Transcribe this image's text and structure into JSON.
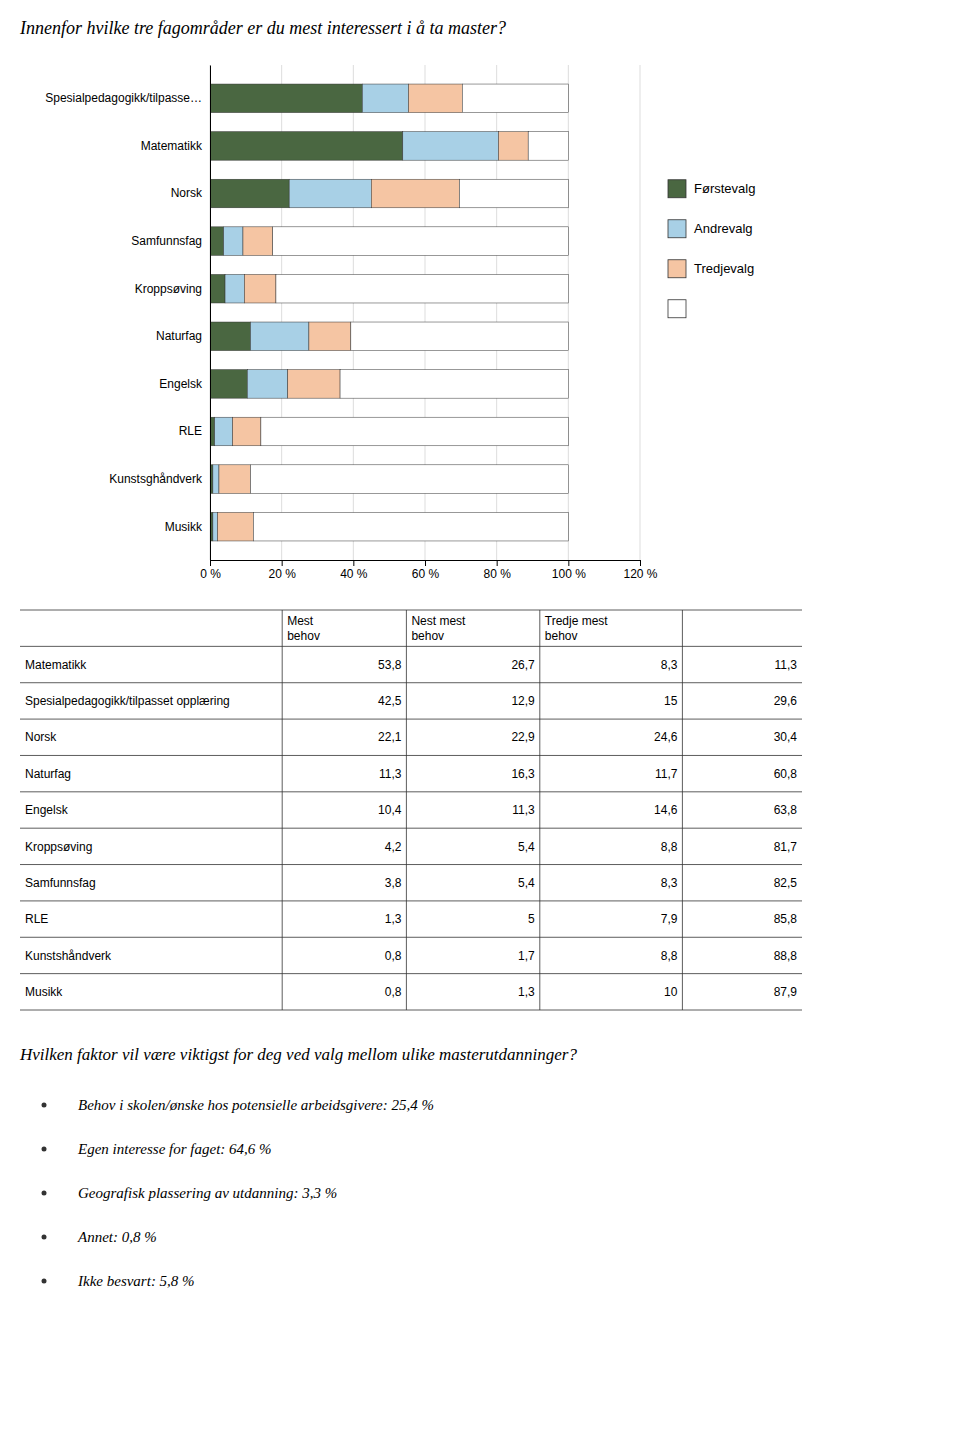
{
  "chart_data": {
    "type": "bar",
    "orientation": "horizontal",
    "stacked": true,
    "title": "Innenfor hvilke tre fagområder er du mest interessert i å ta master?",
    "categories": [
      "Spesialpedagogikk/tilpasse…",
      "Matematikk",
      "Norsk",
      "Samfunnsfag",
      "Kroppsøving",
      "Naturfag",
      "Engelsk",
      "RLE",
      "Kunstsghåndverk",
      "Musikk"
    ],
    "series": [
      {
        "name": "Førstevalg",
        "color": "#4a6741",
        "values": [
          42.5,
          53.8,
          22.1,
          3.8,
          4.2,
          11.3,
          10.4,
          1.3,
          0.8,
          0.8
        ]
      },
      {
        "name": "Andrevalg",
        "color": "#a8d0e6",
        "values": [
          12.9,
          26.7,
          22.9,
          5.4,
          5.4,
          16.3,
          11.3,
          5.0,
          1.7,
          1.3
        ]
      },
      {
        "name": "Tredjevalg",
        "color": "#f5c5a3",
        "values": [
          15.0,
          8.3,
          24.6,
          8.3,
          8.8,
          11.7,
          14.6,
          7.9,
          8.8,
          10.0
        ]
      },
      {
        "color": "#ffffff",
        "values": [
          29.6,
          11.3,
          30.4,
          82.5,
          81.7,
          60.8,
          63.8,
          85.8,
          88.8,
          87.9
        ]
      }
    ],
    "xlim": [
      0,
      120
    ],
    "xticks": [
      {
        "value": 0,
        "label": "0 %"
      },
      {
        "value": 20,
        "label": "20 %"
      },
      {
        "value": 40,
        "label": "40 %"
      },
      {
        "value": 60,
        "label": "60 %"
      },
      {
        "value": 80,
        "label": "80 %"
      },
      {
        "value": 100,
        "label": "100 %"
      },
      {
        "value": 120,
        "label": "120 %"
      }
    ],
    "grid": true,
    "legend": "right"
  },
  "table": {
    "columns": [
      null,
      "Mest\nbehov",
      "Nest mest\nbehov",
      "Tredje mest\nbehov",
      null
    ],
    "rows": [
      [
        "Matematikk",
        "53,8",
        "26,7",
        "8,3",
        "11,3"
      ],
      [
        "Spesialpedagogikk/tilpasset opplæring",
        "42,5",
        "12,9",
        "15",
        "29,6"
      ],
      [
        "Norsk",
        "22,1",
        "22,9",
        "24,6",
        "30,4"
      ],
      [
        "Naturfag",
        "11,3",
        "16,3",
        "11,7",
        "60,8"
      ],
      [
        "Engelsk",
        "10,4",
        "11,3",
        "14,6",
        "63,8"
      ],
      [
        "Kroppsøving",
        "4,2",
        "5,4",
        "8,8",
        "81,7"
      ],
      [
        "Samfunnsfag",
        "3,8",
        "5,4",
        "8,3",
        "82,5"
      ],
      [
        "RLE",
        "1,3",
        "5",
        "7,9",
        "85,8"
      ],
      [
        "Kunstshåndverk",
        "0,8",
        "1,7",
        "8,8",
        "88,8"
      ],
      [
        "Musikk",
        "0,8",
        "1,3",
        "10",
        "87,9"
      ]
    ]
  },
  "notes": {
    "title": "Hvilken faktor vil være viktigst for deg ved valg mellom ulike masterutdanninger?",
    "items": [
      "Behov i skolen/ønske hos potensielle arbeidsgivere: 25,4 %",
      "Egen interesse for faget: 64,6 %",
      "Geografisk plassering av utdanning: 3,3 %",
      "Annet: 0,8 %",
      "Ikke besvart: 5,8 %"
    ]
  }
}
